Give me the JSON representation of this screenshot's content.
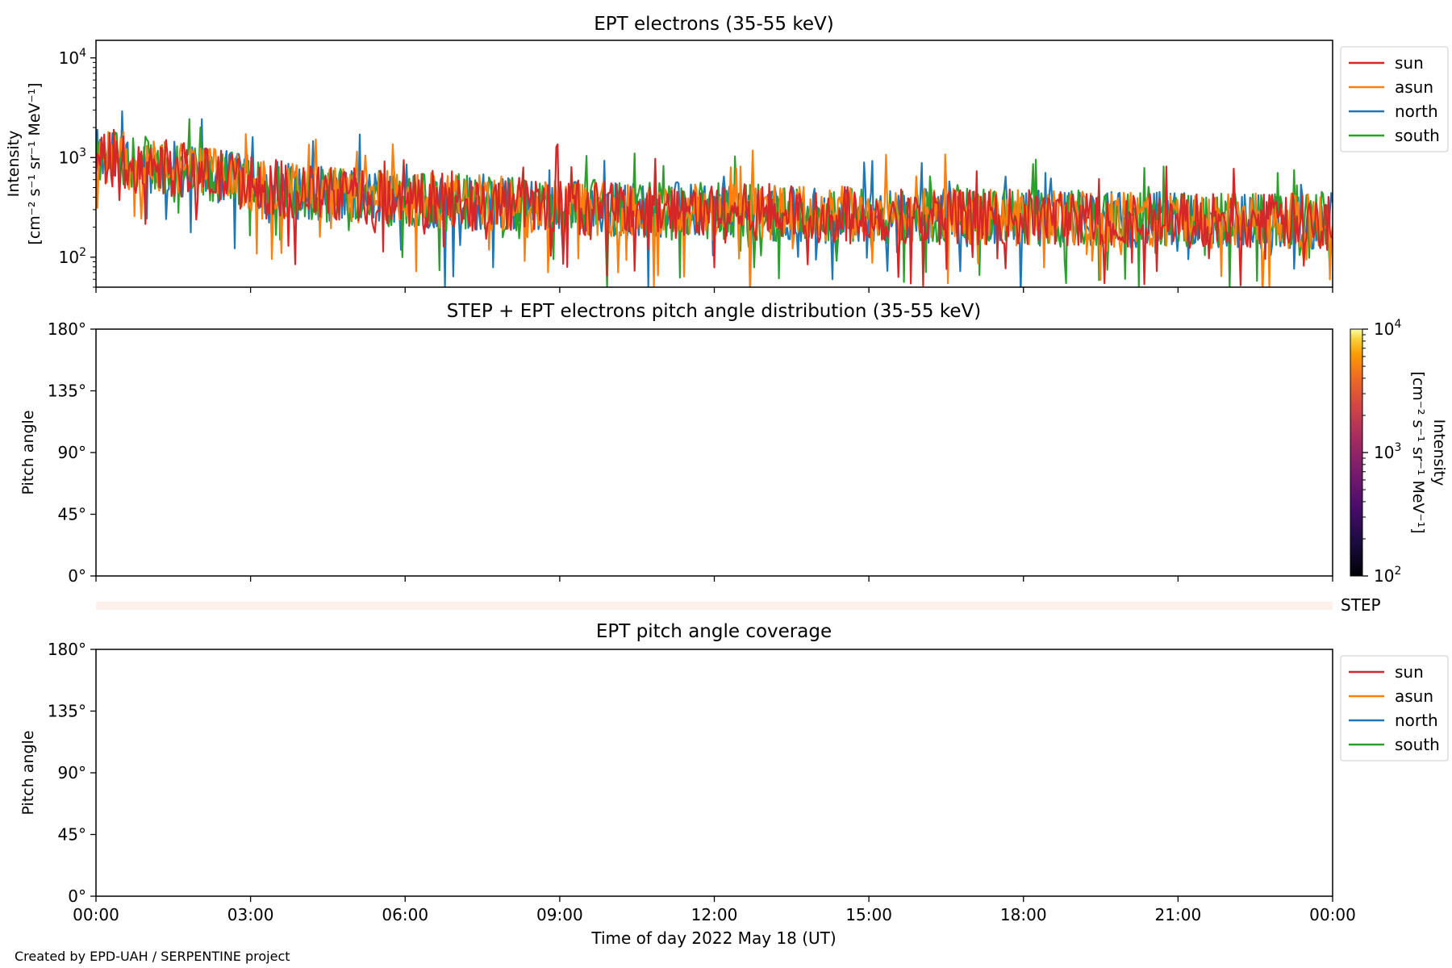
{
  "chart_data": [
    {
      "type": "line",
      "title": "EPT electrons (35-55 keV)",
      "ylabel_line1": "Intensity",
      "ylabel_line2": "[cm⁻² s⁻¹ sr⁻¹ MeV⁻¹]",
      "yscale": "log",
      "ylim": [
        50,
        15000
      ],
      "yticks": [
        {
          "value": 100,
          "base": "10",
          "exp": "2"
        },
        {
          "value": 1000,
          "base": "10",
          "exp": "3"
        },
        {
          "value": 10000,
          "base": "10",
          "exp": "4"
        }
      ],
      "xlim": [
        "2022-05-18 00:00",
        "2022-05-19 00:00"
      ],
      "legend_position": "outside-upper-right",
      "series": [
        {
          "name": "sun",
          "color": "#d62728"
        },
        {
          "name": "asun",
          "color": "#ff7f0e"
        },
        {
          "name": "north",
          "color": "#1f77b4"
        },
        {
          "name": "south",
          "color": "#2ca02c"
        }
      ],
      "trend_x_hours": [
        0,
        1,
        2,
        3,
        4,
        6,
        8,
        10,
        12,
        14,
        16,
        18,
        20,
        22,
        24
      ],
      "trend_values": [
        1000,
        850,
        700,
        550,
        450,
        380,
        340,
        310,
        290,
        270,
        260,
        250,
        240,
        230,
        230
      ]
    },
    {
      "type": "heatmap",
      "title": "STEP + EPT electrons pitch angle distribution (35-55 keV)",
      "ylabel": "Pitch angle",
      "yticks": [
        "0°",
        "45°",
        "90°",
        "135°",
        "180°"
      ],
      "ylim": [
        0,
        180
      ],
      "colorbar": {
        "label_line1": "Intensity",
        "label_line2": "[cm⁻² s⁻¹ sr⁻¹ MeV⁻¹]",
        "scale": "log",
        "range": [
          100,
          10000
        ],
        "colormap": "inferno",
        "ticks": [
          {
            "value": 100,
            "base": "10",
            "exp": "2"
          },
          {
            "value": 1000,
            "base": "10",
            "exp": "3"
          },
          {
            "value": 10000,
            "base": "10",
            "exp": "4"
          }
        ]
      }
    },
    {
      "type": "heatmap",
      "label": "STEP",
      "strip_color": "#fdf0ea"
    },
    {
      "type": "line",
      "title": "EPT pitch angle coverage",
      "ylabel": "Pitch angle",
      "yticks": [
        "0°",
        "45°",
        "90°",
        "135°",
        "180°"
      ],
      "ylim": [
        0,
        180
      ],
      "xlabel": "Time of day 2022 May 18 (UT)",
      "xticks": [
        "00:00",
        "03:00",
        "06:00",
        "09:00",
        "12:00",
        "15:00",
        "18:00",
        "21:00",
        "00:00"
      ],
      "legend_position": "outside-upper-right",
      "series": [
        {
          "name": "sun",
          "color": "#d62728"
        },
        {
          "name": "asun",
          "color": "#ff7f0e"
        },
        {
          "name": "north",
          "color": "#1f77b4"
        },
        {
          "name": "south",
          "color": "#2ca02c"
        }
      ]
    }
  ],
  "footer": {
    "credit": "Created by EPD-UAH / SERPENTINE project"
  }
}
